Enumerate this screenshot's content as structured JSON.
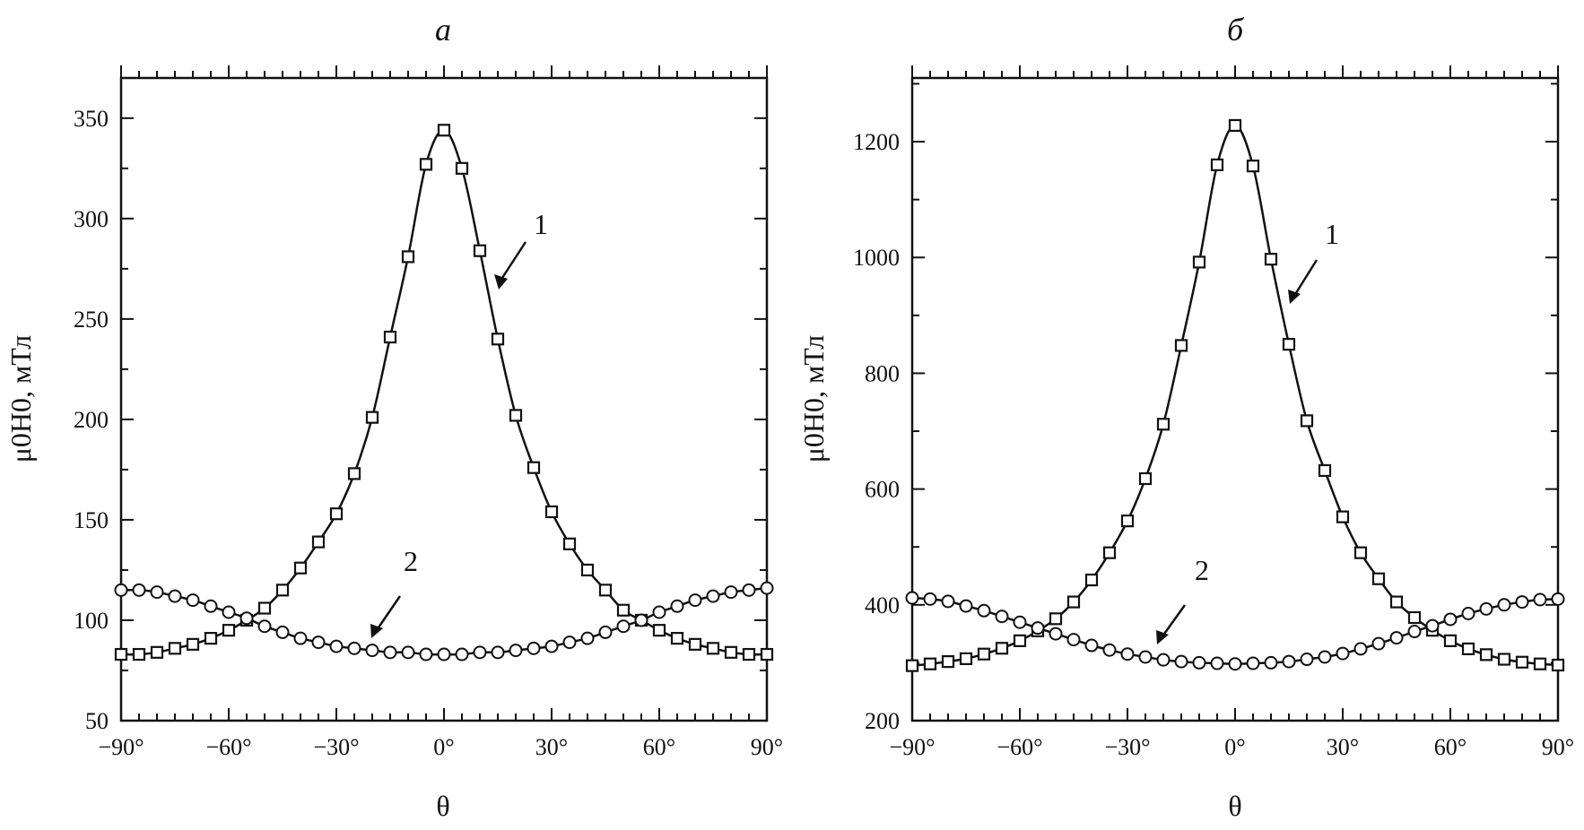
{
  "chart_data": [
    {
      "type": "line",
      "panel": "a",
      "xlabel": "θ",
      "ylabel": "μ0H0, мТл",
      "xlim": [
        -90,
        90
      ],
      "ylim": [
        50,
        370
      ],
      "xticks": [
        "−90°",
        "−60°",
        "−30°",
        "0°",
        "30°",
        "60°",
        "90°"
      ],
      "xtick_values": [
        -90,
        -60,
        -30,
        0,
        30,
        60,
        90
      ],
      "yticks": [
        "50",
        "100",
        "150",
        "200",
        "250",
        "300",
        "350"
      ],
      "ytick_values": [
        50,
        100,
        150,
        200,
        250,
        300,
        350
      ],
      "series": [
        {
          "name": "1",
          "marker": "square",
          "x": [
            -90,
            -85,
            -80,
            -75,
            -70,
            -65,
            -60,
            -55,
            -50,
            -45,
            -40,
            -35,
            -30,
            -25,
            -20,
            -15,
            -10,
            -5,
            0,
            5,
            10,
            15,
            20,
            25,
            30,
            35,
            40,
            45,
            50,
            55,
            60,
            65,
            70,
            75,
            80,
            85,
            90
          ],
          "values": [
            83,
            83,
            84,
            86,
            88,
            91,
            95,
            100,
            106,
            115,
            126,
            139,
            153,
            173,
            201,
            241,
            281,
            327,
            344,
            325,
            284,
            240,
            202,
            176,
            154,
            138,
            125,
            115,
            105,
            100,
            95,
            91,
            88,
            86,
            84,
            83,
            83
          ]
        },
        {
          "name": "2",
          "marker": "circle",
          "x": [
            -90,
            -85,
            -80,
            -75,
            -70,
            -65,
            -60,
            -55,
            -50,
            -45,
            -40,
            -35,
            -30,
            -25,
            -20,
            -15,
            -10,
            -5,
            0,
            5,
            10,
            15,
            20,
            25,
            30,
            35,
            40,
            45,
            50,
            55,
            60,
            65,
            70,
            75,
            80,
            85,
            90
          ],
          "values": [
            115,
            115,
            114,
            112,
            110,
            107,
            104,
            101,
            97,
            94,
            91,
            89,
            87,
            86,
            85,
            84,
            84,
            83,
            83,
            83,
            84,
            84,
            85,
            86,
            87,
            89,
            91,
            94,
            97,
            100,
            104,
            107,
            110,
            112,
            114,
            115,
            116
          ]
        }
      ],
      "annotations": [
        {
          "text": "1",
          "points_to_series": "1"
        },
        {
          "text": "2",
          "points_to_series": "2"
        }
      ]
    },
    {
      "type": "line",
      "panel": "б",
      "xlabel": "θ",
      "ylabel": "μ0H0, мТл",
      "xlim": [
        -90,
        90
      ],
      "ylim": [
        200,
        1310
      ],
      "xticks": [
        "−90°",
        "−60°",
        "−30°",
        "0°",
        "30°",
        "60°",
        "90°"
      ],
      "xtick_values": [
        -90,
        -60,
        -30,
        0,
        30,
        60,
        90
      ],
      "yticks": [
        "200",
        "400",
        "600",
        "800",
        "1000",
        "1200"
      ],
      "ytick_values": [
        200,
        400,
        600,
        800,
        1000,
        1200
      ],
      "series": [
        {
          "name": "1",
          "marker": "square",
          "x": [
            -90,
            -85,
            -80,
            -75,
            -70,
            -65,
            -60,
            -55,
            -50,
            -45,
            -40,
            -35,
            -30,
            -25,
            -20,
            -15,
            -10,
            -5,
            0,
            5,
            10,
            15,
            20,
            25,
            30,
            35,
            40,
            45,
            50,
            55,
            60,
            65,
            70,
            75,
            80,
            85,
            90
          ],
          "values": [
            295,
            298,
            302,
            307,
            315,
            325,
            338,
            355,
            376,
            405,
            443,
            490,
            545,
            618,
            712,
            848,
            992,
            1160,
            1228,
            1158,
            997,
            850,
            718,
            632,
            552,
            490,
            445,
            405,
            378,
            356,
            338,
            324,
            314,
            306,
            301,
            298,
            296
          ]
        },
        {
          "name": "2",
          "marker": "circle",
          "x": [
            -90,
            -85,
            -80,
            -75,
            -70,
            -65,
            -60,
            -55,
            -50,
            -45,
            -40,
            -35,
            -30,
            -25,
            -20,
            -15,
            -10,
            -5,
            0,
            5,
            10,
            15,
            20,
            25,
            30,
            35,
            40,
            45,
            50,
            55,
            60,
            65,
            70,
            75,
            80,
            85,
            90
          ],
          "values": [
            412,
            410,
            406,
            398,
            390,
            380,
            370,
            360,
            350,
            340,
            330,
            322,
            315,
            310,
            305,
            302,
            300,
            299,
            298,
            299,
            300,
            302,
            306,
            310,
            316,
            324,
            333,
            343,
            354,
            364,
            375,
            385,
            393,
            400,
            405,
            409,
            410
          ]
        }
      ],
      "annotations": [
        {
          "text": "1",
          "points_to_series": "1"
        },
        {
          "text": "2",
          "points_to_series": "2"
        }
      ]
    }
  ]
}
